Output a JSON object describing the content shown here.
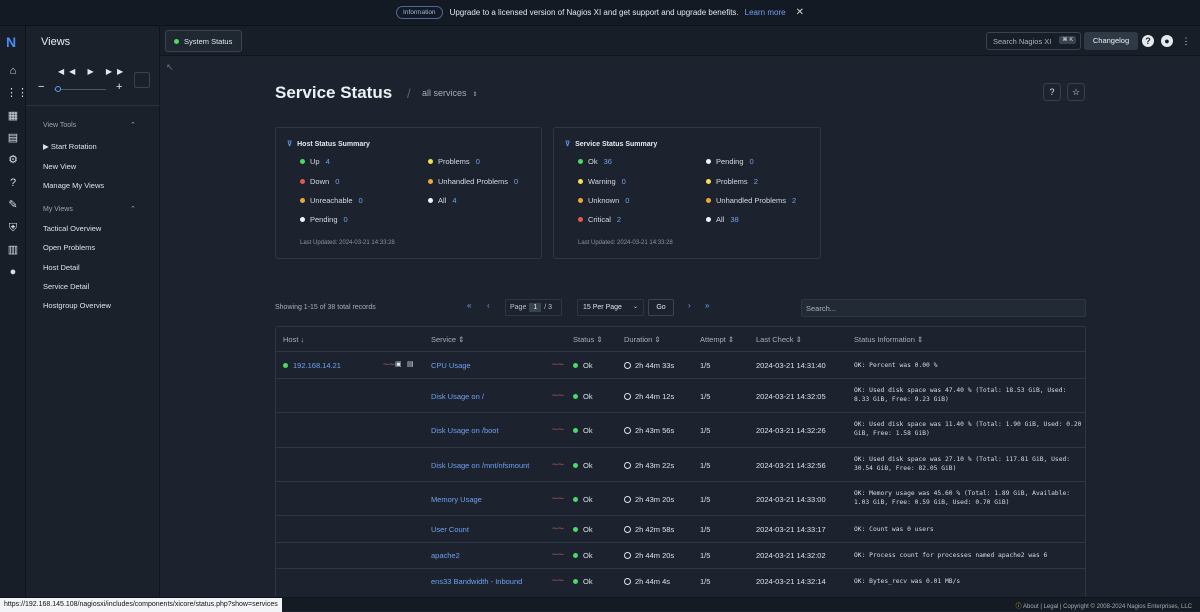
{
  "banner": {
    "pill": "Information",
    "message": "Upgrade to a licensed version of Nagios XI and get support and upgrade benefits.",
    "link": "Learn more",
    "close": "✕"
  },
  "iconbar": {
    "logo": "N",
    "icons": [
      "home-icon",
      "grid-icon",
      "dashboard-icon",
      "chart-icon",
      "gear-icon",
      "help-icon",
      "wrench-icon",
      "shield-icon",
      "building-icon",
      "user-icon"
    ]
  },
  "sidebar": {
    "title": "Views",
    "player": "◀◀ ▶ ▶▶",
    "zoom_minus": "−",
    "zoom_plus": "+",
    "zoom_level": 0.1,
    "view_tools_label": "View Tools",
    "view_tools": [
      "Start Rotation",
      "New View",
      "Manage My Views"
    ],
    "my_views_label": "My Views",
    "my_views": [
      "Tactical Overview",
      "Open Problems",
      "Host Detail",
      "Service Detail",
      "Hostgroup Overview"
    ]
  },
  "tabs": {
    "active": "System Status",
    "search_placeholder": "Search Nagios XI",
    "search_kbd": "⌘ K",
    "changelog": "Changelog"
  },
  "page": {
    "title": "Service Status",
    "subtitle": "all services"
  },
  "host_summary": {
    "title": "Host Status Summary",
    "items": [
      {
        "label": "Up",
        "count": "4",
        "color": "#4cd964"
      },
      {
        "label": "Down",
        "count": "0",
        "color": "#e05a4f"
      },
      {
        "label": "Unreachable",
        "count": "0",
        "color": "#f0a43a"
      },
      {
        "label": "Pending",
        "count": "0",
        "color": "#f2f4f7"
      },
      {
        "label": "Problems",
        "count": "0",
        "color": "#f2e14c"
      },
      {
        "label": "Unhandled Problems",
        "count": "0",
        "color": "#f0a43a"
      },
      {
        "label": "All",
        "count": "4",
        "color": "#f2f4f7"
      }
    ],
    "updated": "Last Updated: 2024-03-21 14:33:28"
  },
  "service_summary": {
    "title": "Service Status Summary",
    "items": [
      {
        "label": "Ok",
        "count": "36",
        "color": "#4cd964"
      },
      {
        "label": "Warning",
        "count": "0",
        "color": "#f2e14c"
      },
      {
        "label": "Unknown",
        "count": "0",
        "color": "#f0a43a"
      },
      {
        "label": "Critical",
        "count": "2",
        "color": "#e05a4f"
      },
      {
        "label": "Pending",
        "count": "0",
        "color": "#f2f4f7"
      },
      {
        "label": "Problems",
        "count": "2",
        "color": "#f2e14c"
      },
      {
        "label": "Unhandled Problems",
        "count": "2",
        "color": "#f0a43a"
      },
      {
        "label": "All",
        "count": "38",
        "color": "#f2f4f7"
      }
    ],
    "updated": "Last Updated: 2024-03-21 14:33:28"
  },
  "pagination": {
    "records": "Showing 1-15 of 38 total records",
    "page_label": "Page",
    "page": "1",
    "of": "/ 3",
    "per_page": "15 Per Page",
    "go": "Go",
    "search_placeholder": "Search..."
  },
  "table": {
    "headers": [
      "Host ↓",
      "Service ⇕",
      "Status ⇕",
      "Duration ⇕",
      "Attempt ⇕",
      "Last Check ⇕",
      "Status Information ⇕"
    ],
    "rows": [
      {
        "host": "192.168.14.21",
        "service": "CPU Usage",
        "status": "Ok",
        "duration": "2h 44m 33s",
        "attempt": "1/5",
        "last_check": "2024-03-21 14:31:40",
        "info": "OK: Percent was 0.00 %"
      },
      {
        "host": "",
        "service": "Disk Usage on /",
        "status": "Ok",
        "duration": "2h 44m 12s",
        "attempt": "1/5",
        "last_check": "2024-03-21 14:32:05",
        "info": "OK: Used disk space was 47.40 % (Total: 18.53 GiB, Used: 8.33 GiB, Free: 9.23 GiB)"
      },
      {
        "host": "",
        "service": "Disk Usage on /boot",
        "status": "Ok",
        "duration": "2h 43m 56s",
        "attempt": "1/5",
        "last_check": "2024-03-21 14:32:26",
        "info": "OK: Used disk space was 11.40 % (Total: 1.90 GiB, Used: 0.20 GiB, Free: 1.58 GiB)"
      },
      {
        "host": "",
        "service": "Disk Usage on /mnt/nfsmount",
        "status": "Ok",
        "duration": "2h 43m 22s",
        "attempt": "1/5",
        "last_check": "2024-03-21 14:32:56",
        "info": "OK: Used disk space was 27.10 % (Total: 117.81 GiB, Used: 30.54 GiB, Free: 82.05 GiB)"
      },
      {
        "host": "",
        "service": "Memory Usage",
        "status": "Ok",
        "duration": "2h 43m 20s",
        "attempt": "1/5",
        "last_check": "2024-03-21 14:33:00",
        "info": "OK: Memory usage was 45.60 % (Total: 1.89 GiB, Available: 1.03 GiB, Free: 0.59 GiB, Used: 0.70 GiB)"
      },
      {
        "host": "",
        "service": "User Count",
        "status": "Ok",
        "duration": "2h 42m 58s",
        "attempt": "1/5",
        "last_check": "2024-03-21 14:33:17",
        "info": "OK: Count was 0 users"
      },
      {
        "host": "",
        "service": "apache2",
        "status": "Ok",
        "duration": "2h 44m 20s",
        "attempt": "1/5",
        "last_check": "2024-03-21 14:32:02",
        "info": "OK: Process count for processes named apache2 was 6"
      },
      {
        "host": "",
        "service": "ens33 Bandwidth - Inbound",
        "status": "Ok",
        "duration": "2h 44m 4s",
        "attempt": "1/5",
        "last_check": "2024-03-21 14:32:14",
        "info": "OK: Bytes_recv was 0.01 MB/s"
      }
    ]
  },
  "statusbar": {
    "url": "https://192.168.145.108/nagiosxi/includes/components/xicore/status.php?show=services",
    "about": "About",
    "legal": "Legal",
    "copyright": "Copyright © 2008-2024 Nagios Enterprises, LLC"
  }
}
